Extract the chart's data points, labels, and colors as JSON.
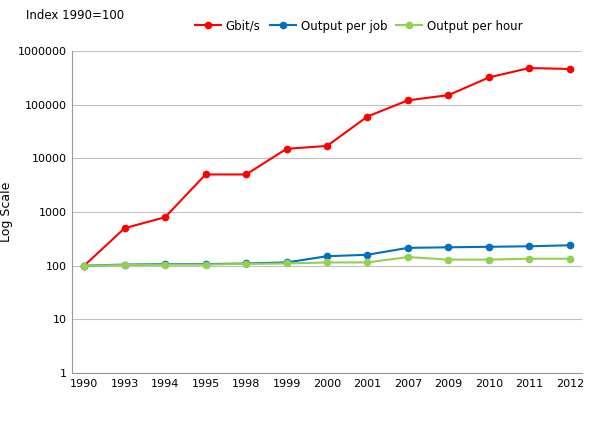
{
  "years": [
    1990,
    1993,
    1994,
    1995,
    1998,
    1999,
    2000,
    2001,
    2007,
    2009,
    2010,
    2011,
    2012
  ],
  "gbit_s": [
    100,
    500,
    800,
    5000,
    5000,
    15000,
    17000,
    60000,
    120000,
    150000,
    320000,
    480000,
    460000
  ],
  "output_per_job": [
    100,
    105,
    107,
    107,
    110,
    115,
    150,
    160,
    215,
    220,
    225,
    230,
    240
  ],
  "output_per_hour": [
    100,
    103,
    105,
    105,
    108,
    110,
    115,
    115,
    145,
    130,
    130,
    135,
    135
  ],
  "gbit_color": "#FF0000",
  "job_color": "#0070C0",
  "hour_color": "#92D050",
  "marker": "o",
  "ylabel": "Log Scale",
  "topleft_label": "Index 1990=100",
  "legend_labels": [
    "Gbit/s",
    "Output per job",
    "Output per hour"
  ],
  "ylim_min": 1,
  "ylim_max": 1000000,
  "background_color": "#FFFFFF",
  "grid_color": "#C0C0C0",
  "linewidth": 1.5,
  "markersize": 4.5
}
